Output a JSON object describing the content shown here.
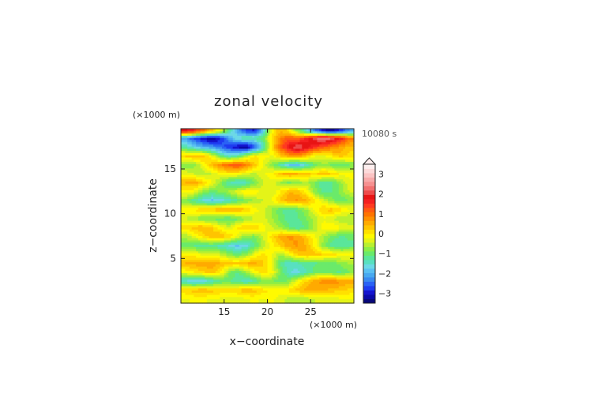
{
  "chart_data": {
    "type": "heatmap",
    "title": "zonal velocity",
    "xlabel": "x−coordinate",
    "ylabel": "z−coordinate",
    "x_unit": "(×1000 m)",
    "y_unit": "(×1000 m)",
    "time_label": "10080 s",
    "xlim": [
      10,
      30
    ],
    "ylim": [
      0,
      19.5
    ],
    "x_ticks": [
      "15",
      "20",
      "25"
    ],
    "x_tick_values": [
      15,
      20,
      25
    ],
    "y_ticks": [
      "5",
      "10",
      "15"
    ],
    "y_tick_values": [
      5,
      10,
      15
    ],
    "colorbar": {
      "min": -3.5,
      "max": 3.5,
      "step": 0.25,
      "tick_labels": [
        "3",
        "2",
        "1",
        "0",
        "−1",
        "−2",
        "−3"
      ],
      "tick_values": [
        3,
        2,
        1,
        0,
        -1,
        -2,
        -3
      ],
      "extend": "max"
    },
    "cells": {
      "x": [
        10.5,
        11.5,
        12.5,
        13.5,
        14.5,
        15.5,
        16.5,
        17.5,
        18.5,
        19.5,
        20.5,
        21.5,
        22.5,
        23.5,
        24.5,
        25.5,
        26.5,
        27.5,
        28.5,
        29.5
      ],
      "z": [
        0.5,
        1.5,
        2.5,
        3.5,
        4.5,
        5.5,
        6.5,
        7.5,
        8.5,
        9.5,
        10.5,
        11.5,
        12.5,
        13.5,
        14.5,
        15.5,
        16.5,
        17.5,
        18.5,
        19.25
      ],
      "values": [
        [
          0.2,
          0.3,
          0.3,
          0.2,
          0.2,
          0.1,
          0.0,
          0.2,
          0.3,
          0.2,
          0.3,
          0.1,
          -0.1,
          -0.2,
          -0.2,
          0.0,
          0.1,
          0.1,
          0.2,
          0.2
        ],
        [
          0.7,
          0.9,
          1.0,
          0.9,
          0.7,
          0.6,
          0.8,
          1.0,
          0.9,
          0.6,
          0.5,
          0.4,
          0.6,
          0.9,
          1.1,
          1.2,
          1.0,
          0.9,
          0.8,
          0.7
        ],
        [
          -1.3,
          -1.6,
          -1.5,
          -1.2,
          -0.8,
          -0.7,
          -0.9,
          -1.2,
          -1.0,
          -0.5,
          -0.5,
          -0.7,
          -0.4,
          0.3,
          0.8,
          1.2,
          1.4,
          1.5,
          1.3,
          1.1
        ],
        [
          0.3,
          0.5,
          0.7,
          0.9,
          0.6,
          -0.4,
          -0.8,
          -0.3,
          0.3,
          0.6,
          0.4,
          -0.5,
          -1.2,
          -1.4,
          -1.0,
          -0.6,
          -0.5,
          -0.7,
          -0.8,
          -0.5
        ],
        [
          1.0,
          1.1,
          1.2,
          1.2,
          1.0,
          0.9,
          0.8,
          1.0,
          1.1,
          0.8,
          0.2,
          -0.8,
          -1.2,
          -1.0,
          -0.9,
          -0.8,
          -0.7,
          -0.6,
          -0.4,
          -0.2
        ],
        [
          0.4,
          0.3,
          0.2,
          0.1,
          0.0,
          -0.4,
          -0.7,
          -0.4,
          0.2,
          0.6,
          0.3,
          -0.2,
          0.3,
          0.8,
          1.0,
          0.9,
          0.7,
          0.6,
          0.4,
          0.3
        ],
        [
          -0.6,
          -0.8,
          -0.9,
          -0.8,
          -1.1,
          -1.3,
          -1.6,
          -1.4,
          -0.8,
          -0.2,
          0.4,
          0.8,
          1.2,
          1.3,
          1.0,
          0.4,
          -0.4,
          -0.9,
          -1.0,
          -0.8
        ],
        [
          -0.2,
          0.2,
          0.6,
          0.9,
          1.0,
          0.8,
          0.2,
          -0.4,
          -0.5,
          0.0,
          0.6,
          1.1,
          1.3,
          1.2,
          0.8,
          0.3,
          -0.2,
          -0.6,
          -0.8,
          -0.7
        ],
        [
          0.6,
          0.9,
          1.0,
          0.8,
          0.4,
          0.0,
          0.5,
          0.8,
          0.7,
          0.4,
          0.0,
          -0.3,
          -0.7,
          -1.0,
          -0.7,
          -0.2,
          0.4,
          0.5,
          0.3,
          0.1
        ],
        [
          0.0,
          -0.3,
          -0.5,
          -0.6,
          -0.7,
          -0.8,
          -0.6,
          -0.3,
          0.0,
          0.1,
          -0.2,
          -0.6,
          -0.9,
          -0.8,
          -0.5,
          -0.1,
          0.2,
          0.0,
          -0.3,
          -0.2
        ],
        [
          0.5,
          0.6,
          0.8,
          0.9,
          1.1,
          1.2,
          1.1,
          0.8,
          0.4,
          0.1,
          -0.3,
          -0.7,
          -0.9,
          -0.7,
          -0.3,
          0.3,
          0.8,
          0.9,
          0.6,
          0.3
        ],
        [
          -0.4,
          -0.9,
          -1.3,
          -1.6,
          -1.5,
          -1.2,
          -0.8,
          -0.5,
          -0.2,
          0.0,
          0.3,
          0.8,
          1.2,
          1.3,
          1.1,
          0.6,
          0.0,
          -0.4,
          -0.7,
          -0.5
        ],
        [
          0.4,
          0.2,
          -0.3,
          -0.6,
          -0.5,
          -0.2,
          0.2,
          0.5,
          0.4,
          0.1,
          0.0,
          0.5,
          1.0,
          0.9,
          0.4,
          -0.4,
          -0.9,
          -0.8,
          -0.4,
          0.0
        ],
        [
          1.0,
          1.2,
          0.8,
          0.3,
          -0.3,
          -1.0,
          -1.3,
          -1.1,
          -0.5,
          0.0,
          0.2,
          -0.3,
          -0.6,
          -0.4,
          -0.2,
          -0.5,
          -1.0,
          -0.8,
          -0.3,
          0.2
        ],
        [
          0.2,
          0.0,
          -0.2,
          0.0,
          0.3,
          0.5,
          0.4,
          0.1,
          -0.1,
          0.2,
          0.4,
          0.9,
          1.2,
          1.0,
          0.8,
          0.7,
          0.9,
          0.7,
          0.4,
          0.3
        ],
        [
          -0.5,
          -0.4,
          0.2,
          0.9,
          1.4,
          1.8,
          2.0,
          1.6,
          0.9,
          0.2,
          -0.4,
          -1.0,
          -1.6,
          -1.7,
          -1.2,
          -0.6,
          -0.3,
          -0.6,
          -0.8,
          -0.5
        ],
        [
          0.8,
          0.9,
          1.0,
          0.3,
          -0.6,
          -1.2,
          -0.9,
          -0.2,
          0.5,
          0.4,
          0.2,
          0.8,
          1.3,
          1.4,
          0.9,
          0.3,
          0.2,
          0.6,
          0.9,
          0.6
        ],
        [
          -1.0,
          -1.4,
          -1.8,
          -2.0,
          -2.3,
          -2.7,
          -3.1,
          -3.4,
          -2.6,
          -1.2,
          0.6,
          1.8,
          2.6,
          3.1,
          2.7,
          2.2,
          1.9,
          1.5,
          1.2,
          0.9
        ],
        [
          -2.0,
          -2.6,
          -3.0,
          -3.3,
          -2.9,
          -2.0,
          -1.2,
          -0.8,
          -0.9,
          -0.6,
          0.5,
          1.4,
          1.9,
          1.7,
          2.3,
          3.0,
          3.3,
          3.1,
          2.5,
          1.6
        ],
        [
          2.6,
          2.2,
          1.6,
          0.9,
          0.2,
          -0.8,
          -1.8,
          -2.6,
          -2.8,
          -1.6,
          0.4,
          1.0,
          0.6,
          -0.4,
          -1.2,
          -2.2,
          -2.9,
          -3.2,
          -2.6,
          -2.0
        ]
      ]
    },
    "palette": [
      "#08087a",
      "#0a0aa8",
      "#1414cf",
      "#1e3cf0",
      "#2a62f5",
      "#3a8af0",
      "#48a8f0",
      "#5ac0f2",
      "#6cd8e6",
      "#58e0c0",
      "#5ae69a",
      "#6aea6a",
      "#8cee46",
      "#b8f030",
      "#e4f418",
      "#fffa00",
      "#ffe000",
      "#ffc400",
      "#ffaa00",
      "#ff9000",
      "#ff7400",
      "#ff5a10",
      "#ff3a20",
      "#f42020",
      "#e81414",
      "#ee4a4a",
      "#f27070",
      "#f69090",
      "#f8aaaa",
      "#fbc4c4",
      "#fcdada",
      "#fdeeee"
    ]
  }
}
